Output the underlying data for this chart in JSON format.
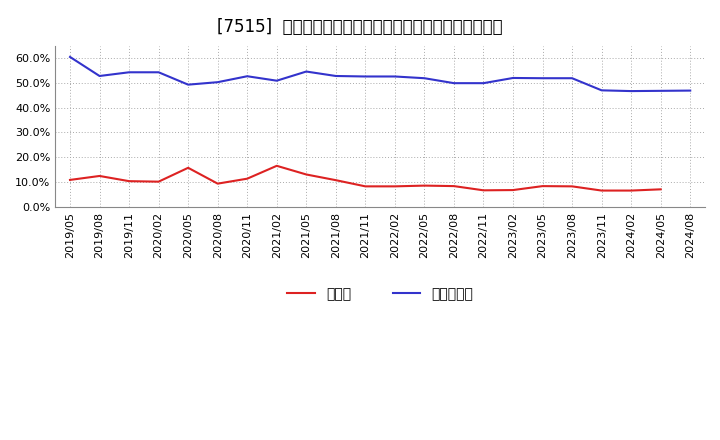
{
  "title": "[7515]  現預金、有利子負債の総資産に対する比率の推移",
  "x_labels": [
    "2019/05",
    "2019/08",
    "2019/11",
    "2020/02",
    "2020/05",
    "2020/08",
    "2020/11",
    "2021/02",
    "2021/05",
    "2021/08",
    "2021/11",
    "2022/02",
    "2022/05",
    "2022/08",
    "2022/11",
    "2023/02",
    "2023/05",
    "2023/08",
    "2023/11",
    "2024/02",
    "2024/05",
    "2024/08"
  ],
  "cash": [
    0.108,
    0.124,
    0.103,
    0.101,
    0.157,
    0.093,
    0.113,
    0.165,
    0.13,
    0.107,
    0.082,
    0.082,
    0.085,
    0.083,
    0.066,
    0.067,
    0.083,
    0.082,
    0.065,
    0.065,
    0.07,
    null
  ],
  "debt": [
    0.605,
    0.528,
    0.543,
    0.543,
    0.493,
    0.503,
    0.527,
    0.509,
    0.546,
    0.528,
    0.526,
    0.526,
    0.519,
    0.499,
    0.499,
    0.52,
    0.519,
    0.519,
    0.47,
    0.467,
    0.468,
    0.469
  ],
  "cash_color": "#dd2222",
  "debt_color": "#3333cc",
  "bg_color": "#ffffff",
  "plot_bg_color": "#ffffff",
  "grid_color": "#aaaaaa",
  "ylim": [
    0.0,
    0.65
  ],
  "yticks": [
    0.0,
    0.1,
    0.2,
    0.3,
    0.4,
    0.5,
    0.6
  ],
  "legend_cash": "現預金",
  "legend_debt": "有利子負債",
  "title_fontsize": 12,
  "tick_fontsize": 8,
  "legend_fontsize": 10
}
